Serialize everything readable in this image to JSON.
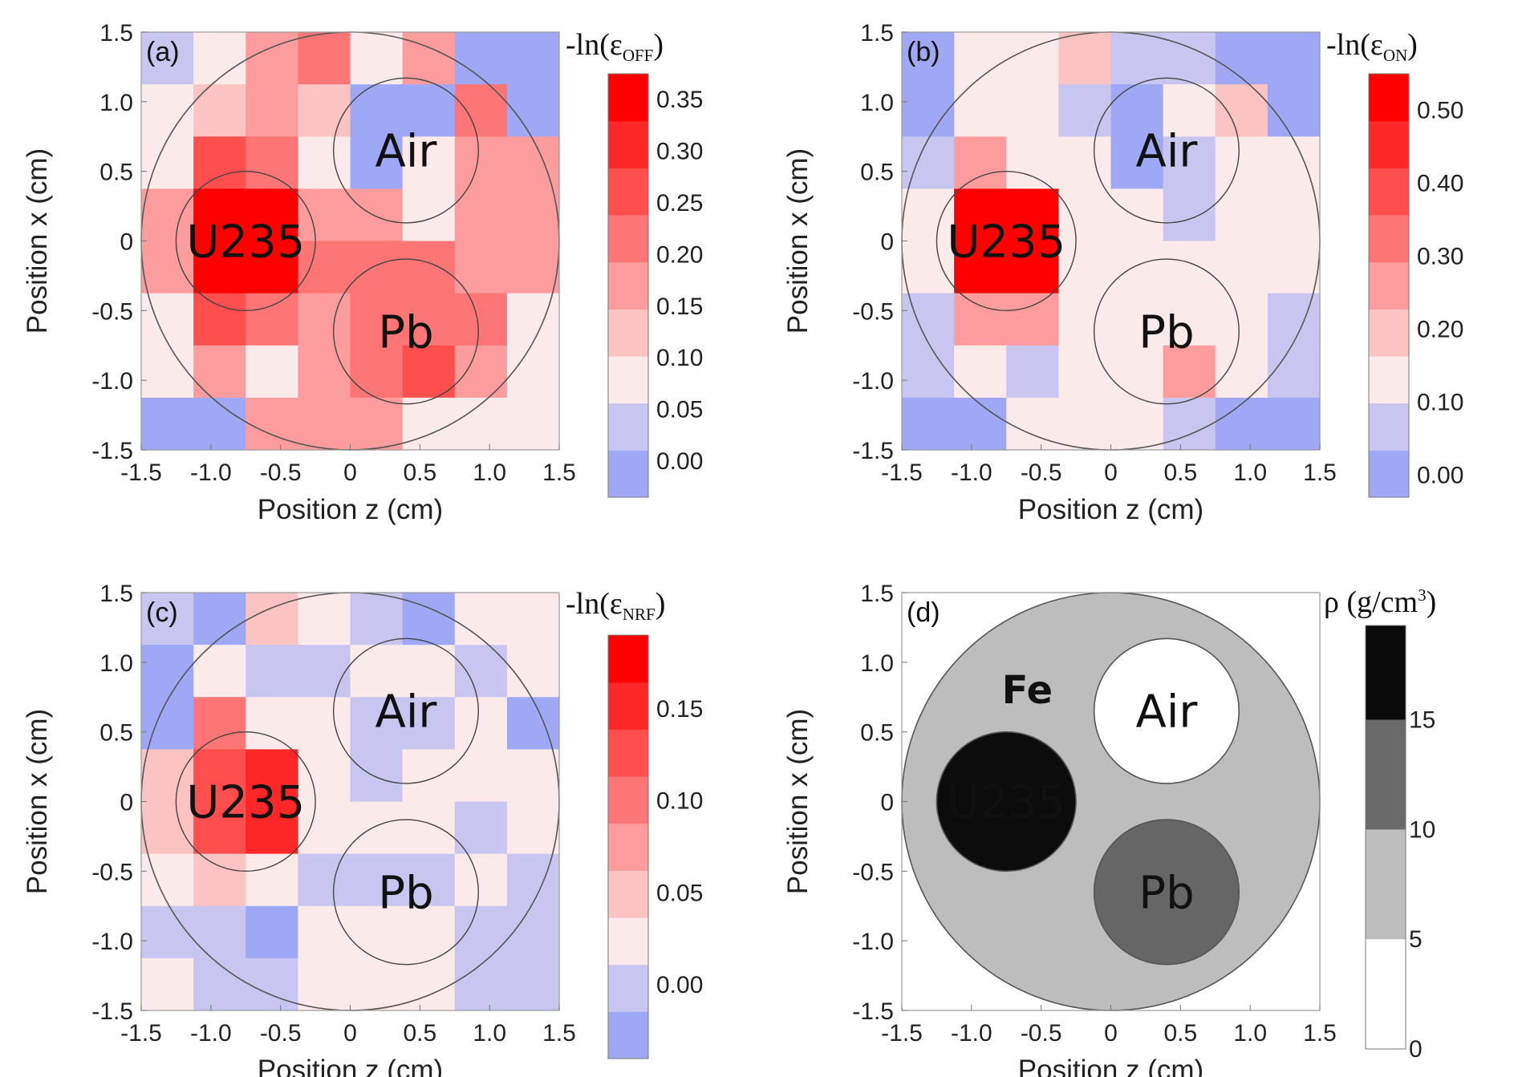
{
  "chart_data": [
    {
      "type": "heatmap",
      "panel_label": "(a)",
      "xlabel": "Position z (cm)",
      "ylabel": "Position x (cm)",
      "xlim": [
        -1.5,
        1.5
      ],
      "ylim": [
        -1.5,
        1.5
      ],
      "x_ticks": [
        "-1.5",
        "-1.0",
        "-0.5",
        "0",
        "0.5",
        "1.0",
        "1.5"
      ],
      "y_ticks": [
        "1.5",
        "1.0",
        "0.5",
        "0",
        "-0.5",
        "-1.0",
        "-1.5"
      ],
      "colorbar": {
        "title": "-ln(ε",
        "title_sub": "OFF",
        "title_end": ")",
        "range": [
          -0.035,
          0.375
        ],
        "ticks": [
          "0.00",
          "0.05",
          "0.10",
          "0.15",
          "0.20",
          "0.25",
          "0.30",
          "0.35"
        ],
        "tick_values": [
          0.0,
          0.05,
          0.1,
          0.15,
          0.2,
          0.25,
          0.3,
          0.35
        ],
        "levels": 9
      },
      "grid_rows": 8,
      "grid_cols": 8,
      "values": [
        [
          0.02,
          0.06,
          0.15,
          0.2,
          0.1,
          0.15,
          0.0,
          0.0
        ],
        [
          0.06,
          0.11,
          0.15,
          0.11,
          0.0,
          0.0,
          0.2,
          0.0
        ],
        [
          0.1,
          0.25,
          0.2,
          0.1,
          0.0,
          0.06,
          0.15,
          0.15
        ],
        [
          0.15,
          0.35,
          0.35,
          0.15,
          0.15,
          0.06,
          0.15,
          0.15
        ],
        [
          0.15,
          0.35,
          0.35,
          0.2,
          0.2,
          0.2,
          0.15,
          0.15
        ],
        [
          0.06,
          0.25,
          0.2,
          0.15,
          0.2,
          0.2,
          0.2,
          0.1
        ],
        [
          0.06,
          0.15,
          0.1,
          0.15,
          0.2,
          0.25,
          0.15,
          0.06
        ],
        [
          0.0,
          0.0,
          0.15,
          0.15,
          0.15,
          0.1,
          0.06,
          0.06
        ]
      ],
      "regions": [
        {
          "name": "U235",
          "z": -0.75,
          "x": 0.0,
          "r": 0.5
        },
        {
          "name": "Air",
          "z": 0.4,
          "x": 0.65,
          "r": 0.52
        },
        {
          "name": "Pb",
          "z": 0.4,
          "x": -0.65,
          "r": 0.52
        }
      ],
      "outer_radius": 1.5
    },
    {
      "type": "heatmap",
      "panel_label": "(b)",
      "xlabel": "Position z (cm)",
      "ylabel": "Position x (cm)",
      "xlim": [
        -1.5,
        1.5
      ],
      "ylim": [
        -1.5,
        1.5
      ],
      "x_ticks": [
        "-1.5",
        "-1.0",
        "-0.5",
        "0",
        "0.5",
        "1.0",
        "1.5"
      ],
      "y_ticks": [
        "1.5",
        "1.0",
        "0.5",
        "0",
        "-0.5",
        "-1.0",
        "-1.5"
      ],
      "colorbar": {
        "title": "-ln(ε",
        "title_sub": "ON",
        "title_end": ")",
        "range": [
          -0.03,
          0.55
        ],
        "ticks": [
          "0.00",
          "0.10",
          "0.20",
          "0.30",
          "0.40",
          "0.50"
        ],
        "tick_values": [
          0.0,
          0.1,
          0.2,
          0.3,
          0.4,
          0.5
        ],
        "levels": 9
      },
      "grid_rows": 8,
      "grid_cols": 8,
      "values": [
        [
          0.02,
          0.1,
          0.15,
          0.17,
          0.06,
          0.05,
          0.0,
          0.0
        ],
        [
          0.0,
          0.1,
          0.1,
          0.06,
          0.0,
          0.1,
          0.2,
          0.0
        ],
        [
          0.06,
          0.25,
          0.15,
          0.1,
          0.0,
          0.04,
          0.1,
          0.1
        ],
        [
          0.15,
          0.52,
          0.52,
          0.1,
          0.1,
          0.04,
          0.1,
          0.1
        ],
        [
          0.15,
          0.52,
          0.52,
          0.15,
          0.15,
          0.1,
          0.1,
          0.1
        ],
        [
          0.06,
          0.25,
          0.25,
          0.1,
          0.15,
          0.15,
          0.15,
          0.06
        ],
        [
          0.04,
          0.1,
          0.06,
          0.1,
          0.15,
          0.25,
          0.1,
          0.04
        ],
        [
          0.0,
          0.0,
          0.1,
          0.1,
          0.1,
          0.05,
          0.0,
          0.0
        ]
      ],
      "regions": [
        {
          "name": "U235",
          "z": -0.75,
          "x": 0.0,
          "r": 0.5
        },
        {
          "name": "Air",
          "z": 0.4,
          "x": 0.65,
          "r": 0.52
        },
        {
          "name": "Pb",
          "z": 0.4,
          "x": -0.65,
          "r": 0.52
        }
      ],
      "outer_radius": 1.5
    },
    {
      "type": "heatmap",
      "panel_label": "(c)",
      "xlabel": "Position z (cm)",
      "ylabel": "Position x (cm)",
      "xlim": [
        -1.5,
        1.5
      ],
      "ylim": [
        -1.5,
        1.5
      ],
      "x_ticks": [
        "-1.5",
        "-1.0",
        "-0.5",
        "0",
        "0.5",
        "1.0",
        "1.5"
      ],
      "y_ticks": [
        "1.5",
        "1.0",
        "0.5",
        "0",
        "-0.5",
        "-1.0",
        "-1.5"
      ],
      "colorbar": {
        "title": "-ln(ε",
        "title_sub": "NRF",
        "title_end": ")",
        "range": [
          -0.04,
          0.19
        ],
        "ticks": [
          "0.00",
          "0.05",
          "0.10",
          "0.15"
        ],
        "tick_values": [
          0.0,
          0.05,
          0.1,
          0.15
        ],
        "levels": 9
      },
      "grid_rows": 8,
      "grid_cols": 8,
      "values": [
        [
          0.01,
          -0.02,
          0.06,
          0.02,
          0.0,
          -0.02,
          0.02,
          0.02
        ],
        [
          -0.02,
          0.03,
          0.0,
          0.0,
          0.02,
          0.02,
          0.0,
          0.02
        ],
        [
          -0.02,
          0.1,
          0.03,
          0.03,
          0.0,
          0.0,
          0.02,
          -0.02
        ],
        [
          0.06,
          0.13,
          0.15,
          0.03,
          0.0,
          0.03,
          0.02,
          0.02
        ],
        [
          0.06,
          0.13,
          0.15,
          0.03,
          0.02,
          0.03,
          0.0,
          0.02
        ],
        [
          0.02,
          0.06,
          0.03,
          0.0,
          0.0,
          0.0,
          0.02,
          0.0
        ],
        [
          0.0,
          0.0,
          -0.02,
          0.02,
          0.02,
          0.02,
          0.0,
          0.0
        ],
        [
          0.02,
          0.0,
          0.0,
          0.02,
          0.02,
          0.02,
          0.0,
          0.0
        ]
      ],
      "regions": [
        {
          "name": "U235",
          "z": -0.75,
          "x": 0.0,
          "r": 0.5
        },
        {
          "name": "Air",
          "z": 0.4,
          "x": 0.65,
          "r": 0.52
        },
        {
          "name": "Pb",
          "z": 0.4,
          "x": -0.65,
          "r": 0.52
        }
      ],
      "outer_radius": 1.5
    },
    {
      "type": "diagram",
      "panel_label": "(d)",
      "xlabel": "Position z (cm)",
      "ylabel": "Position x (cm)",
      "xlim": [
        -1.5,
        1.5
      ],
      "ylim": [
        -1.5,
        1.5
      ],
      "x_ticks": [
        "-1.5",
        "-1.0",
        "-0.5",
        "0",
        "0.5",
        "1.0",
        "1.5"
      ],
      "y_ticks": [
        "1.5",
        "1.0",
        "0.5",
        "0",
        "-0.5",
        "-1.0",
        "-1.5"
      ],
      "colorbar": {
        "title": "ρ (g/cm",
        "title_sup": "3",
        "title_end": ")",
        "range": [
          0,
          19.3
        ],
        "ticks": [
          "0",
          "5",
          "10",
          "15"
        ],
        "tick_values": [
          0,
          5,
          10,
          15
        ],
        "bands": [
          {
            "from": 0,
            "to": 5,
            "color": "#ffffff"
          },
          {
            "from": 5,
            "to": 10,
            "color": "#bdbdbd"
          },
          {
            "from": 10,
            "to": 15,
            "color": "#6a6a6a"
          },
          {
            "from": 15,
            "to": 19.3,
            "color": "#0a0a0a"
          }
        ]
      },
      "materials": [
        {
          "name": "Fe",
          "z": 0.0,
          "x": 0.0,
          "r": 1.5,
          "color": "#bdbdbd",
          "text_color": "#111111",
          "label_z": -0.6,
          "label_x": 0.82
        },
        {
          "name": "U235",
          "z": -0.75,
          "x": 0.0,
          "r": 0.5,
          "color": "#0c0c0c",
          "text_color": "#ffffff",
          "label_z": -0.75,
          "label_x": 0.0
        },
        {
          "name": "Air",
          "z": 0.4,
          "x": 0.65,
          "r": 0.52,
          "color": "#ffffff",
          "text_color": "#111111",
          "label_z": 0.4,
          "label_x": 0.65
        },
        {
          "name": "Pb",
          "z": 0.4,
          "x": -0.65,
          "r": 0.52,
          "color": "#666666",
          "text_color": "#ffffff",
          "label_z": 0.4,
          "label_x": -0.65
        }
      ]
    }
  ],
  "colors": {
    "cold": "#9ea8f5",
    "neutral": "#fbeaea",
    "hot": "#ff0000"
  }
}
